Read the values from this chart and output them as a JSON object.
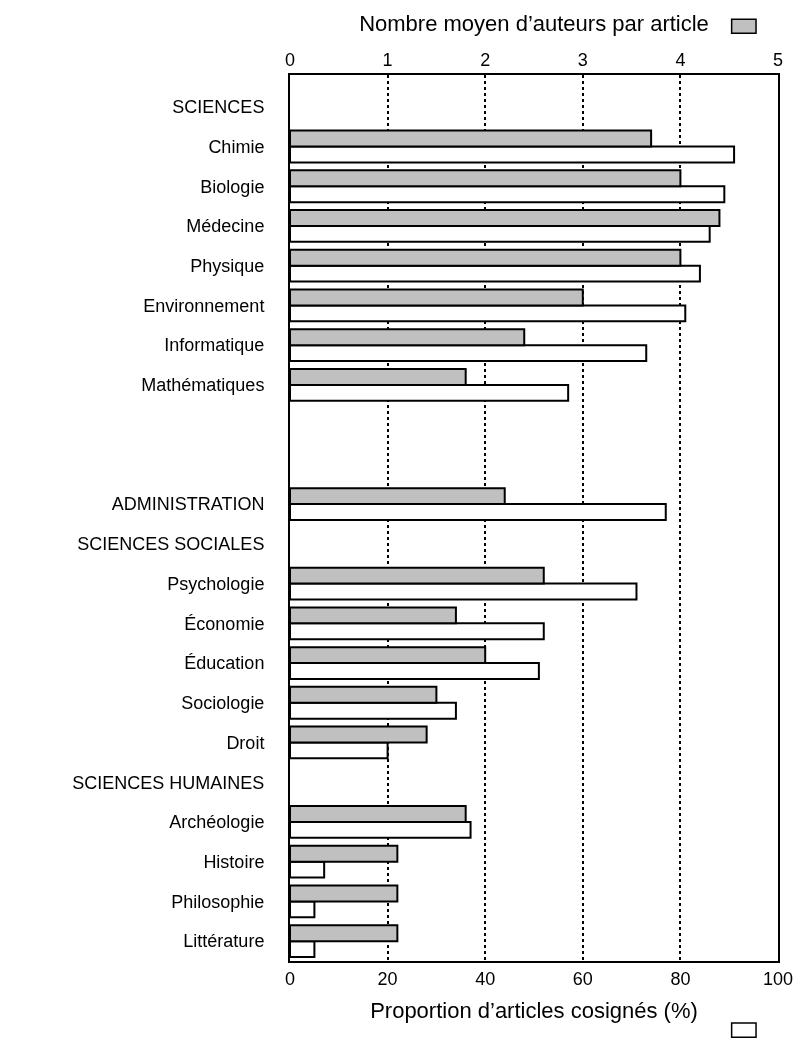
{
  "chart_data": {
    "type": "bar",
    "orientation": "horizontal",
    "categories": [
      "SCIENCES",
      "Chimie",
      "Biologie",
      "Médecine",
      "Physique",
      "Environnement",
      "Informatique",
      "Mathématiques",
      null,
      null,
      "ADMINISTRATION",
      "SCIENCES SOCIALES",
      "Psychologie",
      "Économie",
      "Éducation",
      "Sociologie",
      "Droit",
      "SCIENCES HUMAINES",
      "Archéologie",
      "Histoire",
      "Philosophie",
      "Littérature"
    ],
    "series": [
      {
        "color": "#c0c0c0",
        "axis": "x2",
        "values": [
          null,
          3.7,
          4.0,
          4.4,
          4.0,
          3.0,
          2.4,
          1.8,
          null,
          null,
          2.2,
          null,
          2.6,
          1.7,
          2.0,
          1.5,
          1.4,
          null,
          1.8,
          1.1,
          1.1,
          1.1
        ]
      },
      {
        "color": "#ffffff",
        "values": [
          null,
          91,
          89,
          86,
          84,
          81,
          73,
          57,
          null,
          null,
          77,
          null,
          71,
          52,
          51,
          34,
          20,
          null,
          37,
          7,
          5,
          5
        ]
      }
    ],
    "xlabel": "Proportion d’articles cosignés (%)",
    "x2label": "Nombre moyen d’auteurs par article",
    "xlim": [
      0,
      100
    ],
    "xticks": [
      0,
      20,
      40,
      60,
      80,
      100
    ],
    "x2lim": [
      0,
      5
    ],
    "x2ticks": [
      0,
      1,
      2,
      3,
      4,
      5
    ],
    "grid": "x"
  }
}
